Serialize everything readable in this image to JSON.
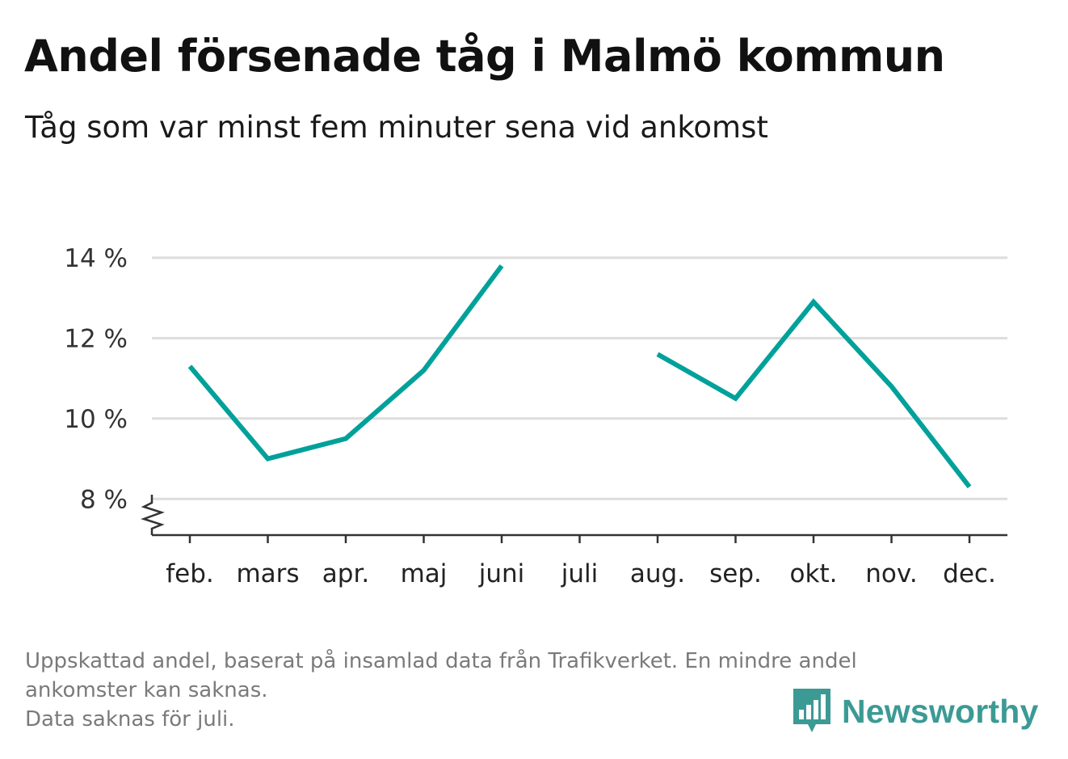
{
  "header": {
    "title": "Andel försenade tåg i Malmö kommun",
    "subtitle": "Tåg som var minst fem minuter sena vid ankomst"
  },
  "chart_data": {
    "type": "line",
    "title": "Andel försenade tåg i Malmö kommun",
    "subtitle": "Tåg som var minst fem minuter sena vid ankomst",
    "xlabel": "",
    "ylabel": "",
    "categories": [
      "feb.",
      "mars",
      "apr.",
      "maj",
      "juni",
      "juli",
      "aug.",
      "sep.",
      "okt.",
      "nov.",
      "dec."
    ],
    "series": [
      {
        "values": [
          11.3,
          9.0,
          9.5,
          11.2,
          13.8,
          null,
          11.6,
          10.5,
          12.9,
          10.8,
          8.3
        ],
        "color": "#00a19a"
      }
    ],
    "y_ticks": [
      8,
      10,
      12,
      14
    ],
    "y_tick_labels": [
      "8 %",
      "10 %",
      "12 %",
      "14 %"
    ],
    "ylim": [
      7.1,
      14.3
    ],
    "y_axis_break": true,
    "grid": true,
    "legend": "none"
  },
  "footnote": {
    "line1": "Uppskattad andel, baserat på insamlad data från Trafikverket. En mindre andel",
    "line2": "ankomster kan saknas.",
    "line3": "Data saknas för juli."
  },
  "brand": {
    "name": "Newsworthy",
    "logo_icon": "bar-chart-speech-bubble-icon",
    "color": "#3c9a94"
  },
  "colors": {
    "line": "#00a19a",
    "grid": "#dddddd",
    "axis": "#333333",
    "text": "#111111",
    "muted": "#7a7a7a"
  }
}
